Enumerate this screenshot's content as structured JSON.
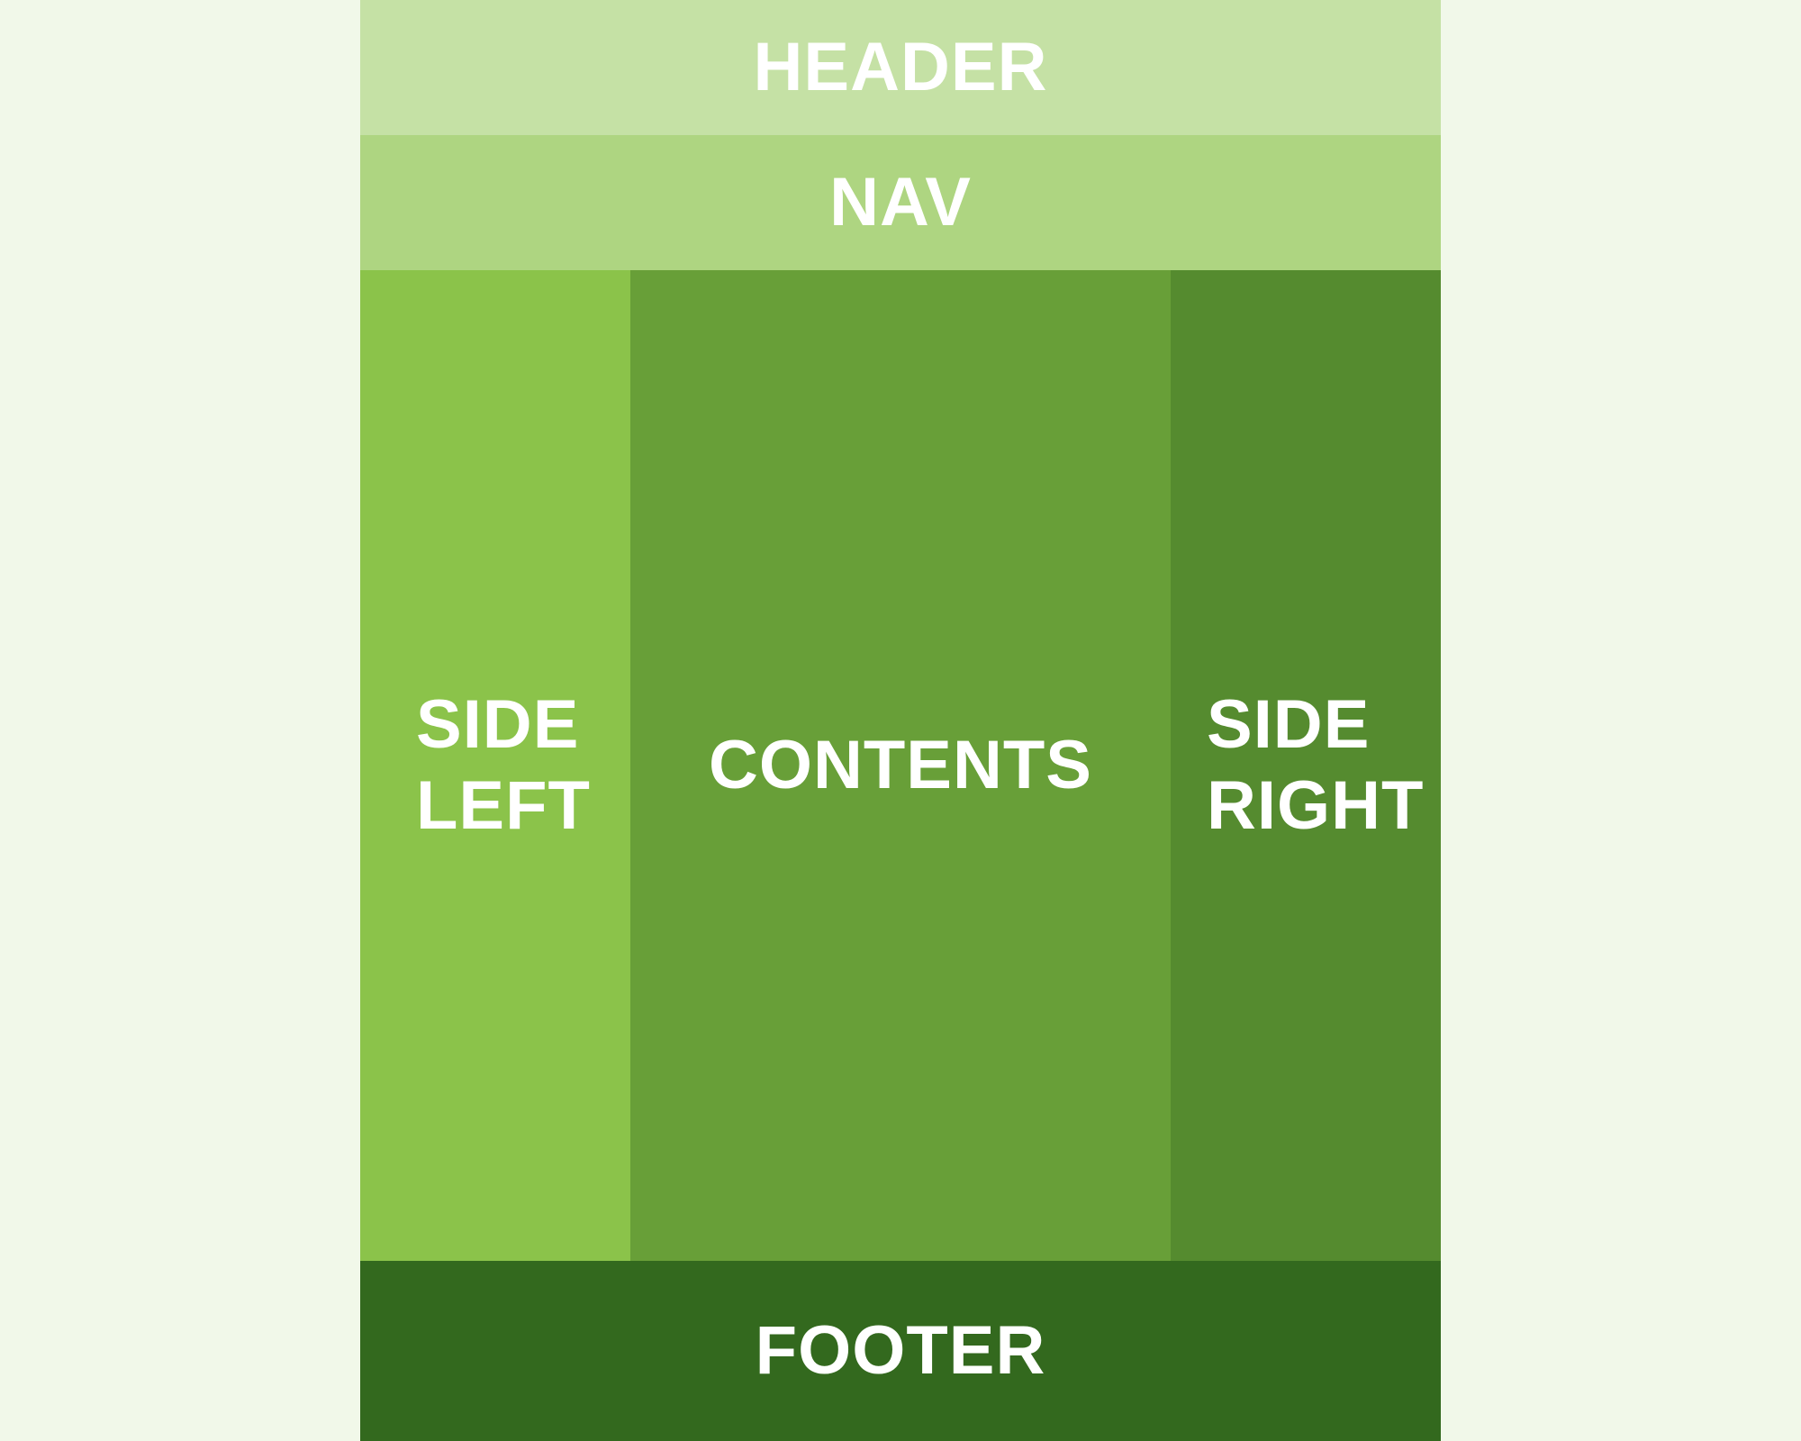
{
  "regions": {
    "header": "HEADER",
    "nav": "NAV",
    "side_left": "SIDE\nLEFT",
    "contents": "CONTENTS",
    "side_right": "SIDE\nRIGHT",
    "footer": "FOOTER"
  },
  "colors": {
    "background": "#f1f8e9",
    "header": "#c5e1a5",
    "nav": "#aed581",
    "side_left": "#8bc34a",
    "contents": "#689f38",
    "side_right": "#558b2f",
    "footer": "#33691e",
    "text": "#ffffff"
  }
}
